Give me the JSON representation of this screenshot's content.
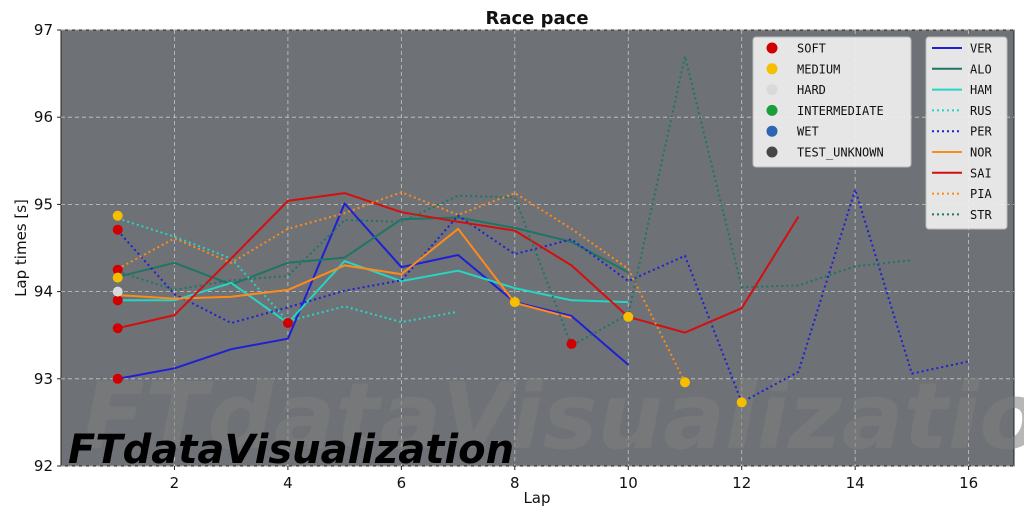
{
  "watermark": "FTdataVisualization",
  "chart_data": {
    "type": "line",
    "title": "Race pace",
    "xlabel": "Lap",
    "ylabel": "Lap times [s]",
    "xlim": [
      0.0,
      16.8
    ],
    "ylim": [
      92,
      97
    ],
    "xticks": [
      "2",
      "4",
      "6",
      "8",
      "10",
      "12",
      "14",
      "16"
    ],
    "yticks": [
      "92",
      "93",
      "94",
      "95",
      "96",
      "97"
    ],
    "grid": true,
    "background": "#6e7175",
    "compound_legend": {
      "placement": "top-right",
      "entries": [
        {
          "name": "SOFT",
          "color": "#d10000"
        },
        {
          "name": "MEDIUM",
          "color": "#f5bf00"
        },
        {
          "name": "HARD",
          "color": "#d9d9d9"
        },
        {
          "name": "INTERMEDIATE",
          "color": "#1a9e3a"
        },
        {
          "name": "WET",
          "color": "#2e63b5"
        },
        {
          "name": "TEST_UNKNOWN",
          "color": "#474747"
        }
      ]
    },
    "series": [
      {
        "name": "VER",
        "color": "#1f1fd6",
        "dash": "solid",
        "x": [
          1,
          2,
          3,
          4,
          5,
          6,
          7,
          8,
          9,
          10
        ],
        "y": [
          93.0,
          93.12,
          93.34,
          93.46,
          95.01,
          94.28,
          94.42,
          93.88,
          93.72,
          93.16
        ]
      },
      {
        "name": "ALO",
        "color": "#1e7566",
        "dash": "solid",
        "x": [
          1,
          2,
          3,
          4,
          5,
          6,
          7,
          8,
          9,
          10
        ],
        "y": [
          94.17,
          94.33,
          94.08,
          94.33,
          94.39,
          94.83,
          94.85,
          94.73,
          94.57,
          94.22
        ]
      },
      {
        "name": "HAM",
        "color": "#25d6c4",
        "dash": "solid",
        "x": [
          1,
          2,
          3,
          4,
          5,
          6,
          7,
          8,
          9,
          10
        ],
        "y": [
          93.9,
          93.9,
          94.1,
          93.64,
          94.35,
          94.12,
          94.24,
          94.04,
          93.9,
          93.88
        ]
      },
      {
        "name": "RUS",
        "color": "#25d6c4",
        "dash": "dotted",
        "x": [
          1,
          2,
          3,
          4,
          5,
          6,
          7
        ],
        "y": [
          94.84,
          94.63,
          94.38,
          93.66,
          93.83,
          93.65,
          93.77
        ]
      },
      {
        "name": "PER",
        "color": "#1f1fd6",
        "dash": "dotted",
        "x": [
          1,
          2,
          3,
          4,
          5,
          6,
          7,
          8,
          9,
          10,
          11,
          12,
          13,
          14,
          15,
          16
        ],
        "y": [
          94.7,
          93.97,
          93.64,
          93.82,
          94.01,
          94.13,
          94.87,
          94.43,
          94.6,
          94.12,
          94.41,
          92.73,
          93.08,
          95.17,
          93.06,
          93.2
        ]
      },
      {
        "name": "NOR",
        "color": "#ff8a1c",
        "dash": "solid",
        "x": [
          1,
          2,
          3,
          4,
          5,
          6,
          7,
          8,
          9
        ],
        "y": [
          93.96,
          93.92,
          93.94,
          94.02,
          94.3,
          94.2,
          94.72,
          93.87,
          93.7
        ]
      },
      {
        "name": "SAI",
        "color": "#d40f0f",
        "dash": "solid",
        "x": [
          1,
          2,
          3,
          4,
          5,
          6,
          7,
          8,
          9,
          10,
          11,
          12,
          13
        ],
        "y": [
          93.58,
          93.73,
          94.38,
          95.04,
          95.13,
          94.91,
          94.8,
          94.7,
          94.3,
          93.71,
          93.53,
          93.81,
          94.86
        ]
      },
      {
        "name": "PIA",
        "color": "#ff8a1c",
        "dash": "dotted",
        "x": [
          1,
          2,
          3,
          4,
          5,
          6,
          7,
          8,
          9,
          10,
          11
        ],
        "y": [
          94.26,
          94.61,
          94.33,
          94.72,
          94.9,
          95.14,
          94.88,
          95.13,
          94.72,
          94.26,
          92.96
        ]
      },
      {
        "name": "STR",
        "color": "#1e7566",
        "dash": "dotted",
        "x": [
          1,
          2,
          3,
          4,
          5,
          6,
          7,
          8,
          9,
          10,
          11,
          12,
          13,
          14,
          15
        ],
        "y": [
          94.23,
          94.02,
          94.13,
          94.18,
          94.82,
          94.8,
          95.1,
          95.08,
          93.38,
          93.74,
          96.7,
          94.05,
          94.07,
          94.29,
          94.36
        ]
      }
    ],
    "markers": [
      {
        "x": 1,
        "y": 93.0,
        "compound": "SOFT"
      },
      {
        "x": 1,
        "y": 93.58,
        "compound": "SOFT"
      },
      {
        "x": 1,
        "y": 93.9,
        "compound": "SOFT"
      },
      {
        "x": 1,
        "y": 94.25,
        "compound": "SOFT"
      },
      {
        "x": 1,
        "y": 94.71,
        "compound": "SOFT"
      },
      {
        "x": 4,
        "y": 93.64,
        "compound": "SOFT"
      },
      {
        "x": 9,
        "y": 93.4,
        "compound": "SOFT"
      },
      {
        "x": 1,
        "y": 94.87,
        "compound": "MEDIUM"
      },
      {
        "x": 1,
        "y": 94.16,
        "compound": "MEDIUM"
      },
      {
        "x": 8,
        "y": 93.88,
        "compound": "MEDIUM"
      },
      {
        "x": 10,
        "y": 93.71,
        "compound": "MEDIUM"
      },
      {
        "x": 11,
        "y": 92.96,
        "compound": "MEDIUM"
      },
      {
        "x": 12,
        "y": 92.73,
        "compound": "MEDIUM"
      },
      {
        "x": 1,
        "y": 94.0,
        "compound": "HARD"
      }
    ]
  }
}
